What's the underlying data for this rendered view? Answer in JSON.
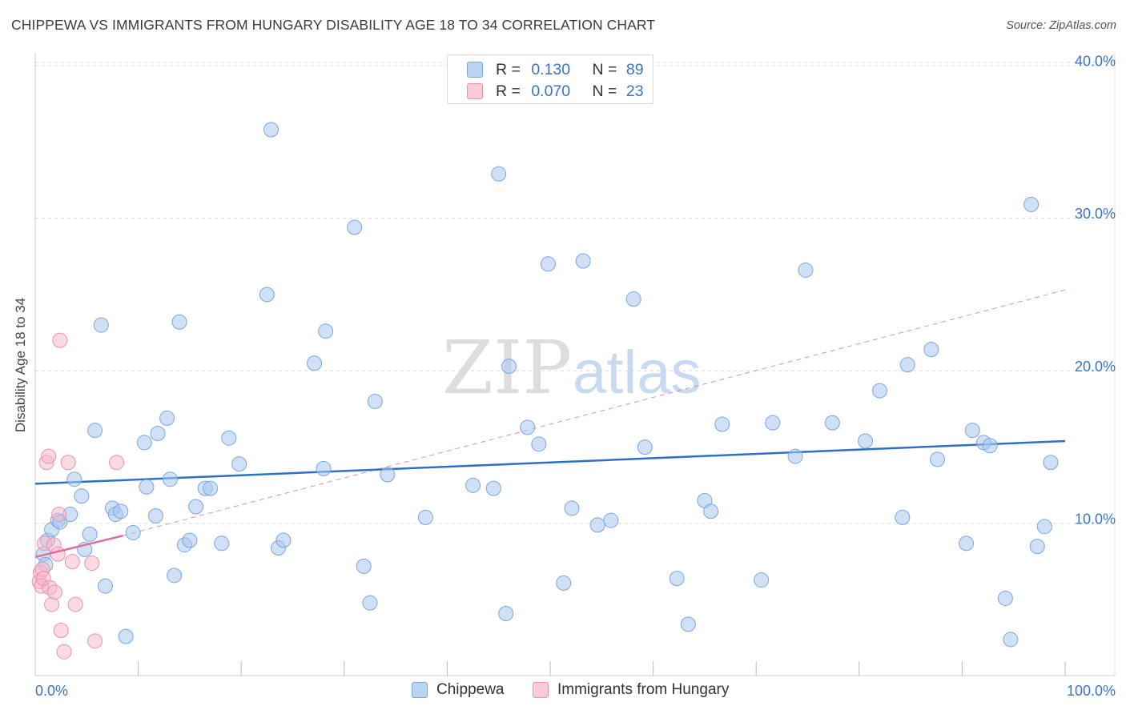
{
  "title": "CHIPPEWA VS IMMIGRANTS FROM HUNGARY DISABILITY AGE 18 TO 34 CORRELATION CHART",
  "source": "Source: ZipAtlas.com",
  "watermark": {
    "zip": "ZIP",
    "atlas": "atlas"
  },
  "legend": {
    "rows": [
      {
        "r_label": "R =",
        "r_value": "0.130",
        "n_label": "N =",
        "n_value": "89"
      },
      {
        "r_label": "R =",
        "r_value": "0.070",
        "n_label": "N =",
        "n_value": "23"
      }
    ]
  },
  "bottom_legend": [
    "Chippewa",
    "Immigrants from Hungary"
  ],
  "colors": {
    "chippewa_fill": "#a9c8f0",
    "chippewa_stroke": "#7aa6de",
    "chippewa_line": "#2d6fcd",
    "hungary_fill": "#f7b6c9",
    "hungary_stroke": "#e991ad",
    "hungary_line": "#e0709a",
    "axis_label": "#3b73c4",
    "grid": "#dcdcdc"
  },
  "chart_data": {
    "type": "scatter",
    "title": "CHIPPEWA VS IMMIGRANTS FROM HUNGARY DISABILITY AGE 18 TO 34 CORRELATION CHART",
    "xlabel": "",
    "ylabel": "Disability Age 18 to 34",
    "xlim": [
      0,
      100
    ],
    "ylim": [
      0,
      41.5
    ],
    "x_tick_labels": [
      "0.0%",
      "100.0%"
    ],
    "y_ticks": [
      10,
      20,
      30,
      40
    ],
    "y_tick_labels": [
      "10.0%",
      "20.0%",
      "30.0%",
      "40.0%"
    ],
    "grid": true,
    "series": [
      {
        "name": "Chippewa",
        "r": 0.13,
        "n": 89,
        "trend": {
          "x": [
            0,
            100
          ],
          "y": [
            12.6,
            15.4
          ],
          "style": "solid"
        },
        "points": [
          [
            0.8,
            8.0
          ],
          [
            1.2,
            8.9
          ],
          [
            1.6,
            9.6
          ],
          [
            2.2,
            10.2
          ],
          [
            2.4,
            10.1
          ],
          [
            3.4,
            10.6
          ],
          [
            3.8,
            12.9
          ],
          [
            4.5,
            11.8
          ],
          [
            4.8,
            8.3
          ],
          [
            5.3,
            9.3
          ],
          [
            5.8,
            16.1
          ],
          [
            6.4,
            23.0
          ],
          [
            6.8,
            5.9
          ],
          [
            7.5,
            11.0
          ],
          [
            7.8,
            10.6
          ],
          [
            8.3,
            10.8
          ],
          [
            8.8,
            2.6
          ],
          [
            9.5,
            9.4
          ],
          [
            10.6,
            15.3
          ],
          [
            10.8,
            12.4
          ],
          [
            11.7,
            10.5
          ],
          [
            11.9,
            15.9
          ],
          [
            12.8,
            16.9
          ],
          [
            13.1,
            12.9
          ],
          [
            13.5,
            6.6
          ],
          [
            14.0,
            23.2
          ],
          [
            14.5,
            8.6
          ],
          [
            15.0,
            8.9
          ],
          [
            15.6,
            11.1
          ],
          [
            16.5,
            12.3
          ],
          [
            17.0,
            12.3
          ],
          [
            18.1,
            8.7
          ],
          [
            18.8,
            15.6
          ],
          [
            19.8,
            13.9
          ],
          [
            22.5,
            25.0
          ],
          [
            22.9,
            35.8
          ],
          [
            23.6,
            8.4
          ],
          [
            24.1,
            8.9
          ],
          [
            27.1,
            20.5
          ],
          [
            28.0,
            13.6
          ],
          [
            28.2,
            22.6
          ],
          [
            31.0,
            29.4
          ],
          [
            31.9,
            7.2
          ],
          [
            32.5,
            4.8
          ],
          [
            33.0,
            18.0
          ],
          [
            34.2,
            13.2
          ],
          [
            37.9,
            10.4
          ],
          [
            42.5,
            12.5
          ],
          [
            44.5,
            12.3
          ],
          [
            45.0,
            32.9
          ],
          [
            45.7,
            4.1
          ],
          [
            46.0,
            20.3
          ],
          [
            47.8,
            16.3
          ],
          [
            48.9,
            15.2
          ],
          [
            49.8,
            27.0
          ],
          [
            51.3,
            6.1
          ],
          [
            52.1,
            11.0
          ],
          [
            53.2,
            27.2
          ],
          [
            54.6,
            9.9
          ],
          [
            55.9,
            10.2
          ],
          [
            58.1,
            24.7
          ],
          [
            59.2,
            15.0
          ],
          [
            62.3,
            6.4
          ],
          [
            63.4,
            3.4
          ],
          [
            65.0,
            11.5
          ],
          [
            65.6,
            10.8
          ],
          [
            66.7,
            16.5
          ],
          [
            70.5,
            6.3
          ],
          [
            71.6,
            16.6
          ],
          [
            73.8,
            14.4
          ],
          [
            74.8,
            26.6
          ],
          [
            77.4,
            16.6
          ],
          [
            80.6,
            15.4
          ],
          [
            82.0,
            18.7
          ],
          [
            84.2,
            10.4
          ],
          [
            84.7,
            20.4
          ],
          [
            87.0,
            21.4
          ],
          [
            87.6,
            14.2
          ],
          [
            90.4,
            8.7
          ],
          [
            91.0,
            16.1
          ],
          [
            92.1,
            15.3
          ],
          [
            92.7,
            15.1
          ],
          [
            94.2,
            5.1
          ],
          [
            94.7,
            2.4
          ],
          [
            96.7,
            30.9
          ],
          [
            97.3,
            8.5
          ],
          [
            98.0,
            9.8
          ],
          [
            98.6,
            14.0
          ],
          [
            1.0,
            7.3
          ]
        ]
      },
      {
        "name": "Immigrants from Hungary",
        "r": 0.07,
        "n": 23,
        "trend": {
          "solid": {
            "x": [
              0,
              8.5
            ],
            "y": [
              7.8,
              9.2
            ]
          },
          "dashed": {
            "x": [
              8.5,
              100
            ],
            "y": [
              9.2,
              25.3
            ]
          }
        },
        "points": [
          [
            0.4,
            6.2
          ],
          [
            0.5,
            6.8
          ],
          [
            0.6,
            5.9
          ],
          [
            0.7,
            7.0
          ],
          [
            0.8,
            6.4
          ],
          [
            0.9,
            8.7
          ],
          [
            1.1,
            14.0
          ],
          [
            1.3,
            14.4
          ],
          [
            1.4,
            5.8
          ],
          [
            1.6,
            4.7
          ],
          [
            1.8,
            8.6
          ],
          [
            1.9,
            5.5
          ],
          [
            2.2,
            8.0
          ],
          [
            2.3,
            10.6
          ],
          [
            2.5,
            3.0
          ],
          [
            2.8,
            1.6
          ],
          [
            2.4,
            22.0
          ],
          [
            3.2,
            14.0
          ],
          [
            3.6,
            7.5
          ],
          [
            3.9,
            4.7
          ],
          [
            5.5,
            7.4
          ],
          [
            5.8,
            2.3
          ],
          [
            7.9,
            14.0
          ]
        ]
      }
    ]
  }
}
